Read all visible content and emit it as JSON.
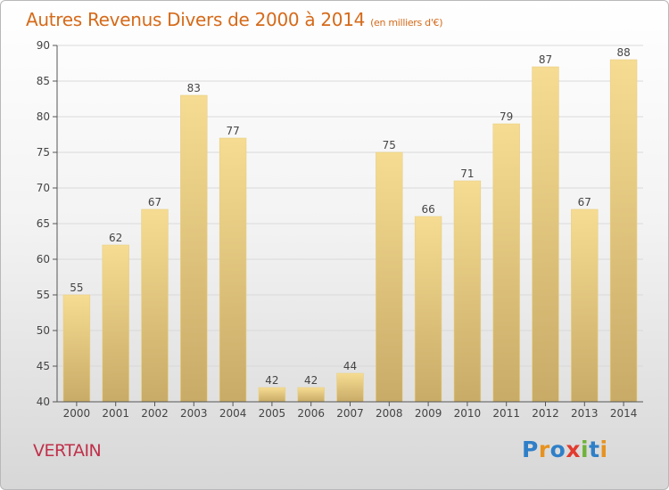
{
  "header": {
    "title": "Autres Revenus Divers de 2000 à 2014",
    "unit": "(en milliers d'€)"
  },
  "footer": {
    "commune": "VERTAIN",
    "brand": "Proxiti",
    "brand_letters": [
      {
        "char": "P",
        "color": "#2f7fc8"
      },
      {
        "char": "r",
        "color": "#e7921f"
      },
      {
        "char": "o",
        "color": "#2f7fc8"
      },
      {
        "char": "x",
        "color": "#e23b2f"
      },
      {
        "char": "i",
        "color": "#6fb23a"
      },
      {
        "char": "t",
        "color": "#2f7fc8"
      },
      {
        "char": "i",
        "color": "#e7921f"
      }
    ]
  },
  "colors": {
    "title": "#d56a1a",
    "commune": "#c0304a",
    "bar_light": "#f6dc92",
    "bar_dark": "#c8ab67",
    "axis": "#555555",
    "grid": "#d9d9d9",
    "label": "#444444"
  },
  "chart_data": {
    "type": "bar",
    "title": "Autres Revenus Divers de 2000 à 2014",
    "categories": [
      "2000",
      "2001",
      "2002",
      "2003",
      "2004",
      "2005",
      "2006",
      "2007",
      "2008",
      "2009",
      "2010",
      "2011",
      "2012",
      "2013",
      "2014"
    ],
    "values": [
      55,
      62,
      67,
      83,
      77,
      42,
      42,
      44,
      75,
      66,
      71,
      79,
      87,
      67,
      88
    ],
    "ylim": [
      40,
      90
    ],
    "yticks": [
      40,
      45,
      50,
      55,
      60,
      65,
      70,
      75,
      80,
      85,
      90
    ],
    "xlabel": "",
    "ylabel": "",
    "grid": true,
    "data_labels": true
  }
}
